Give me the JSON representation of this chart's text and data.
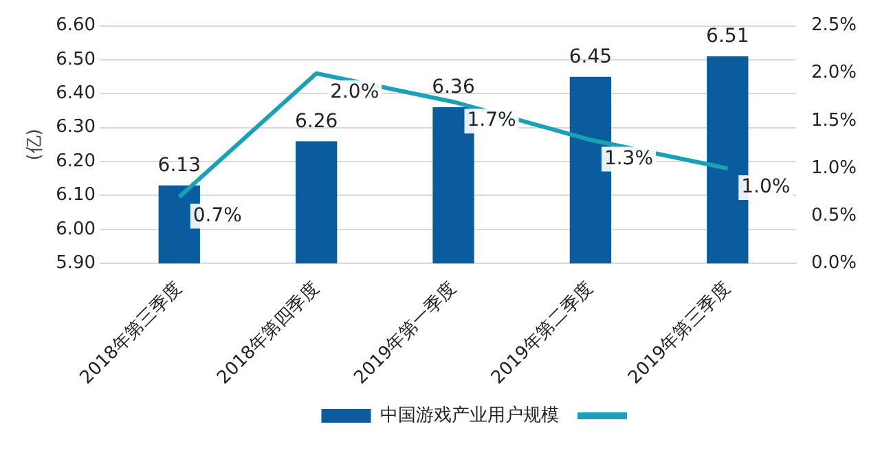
{
  "chart_data": {
    "type": "bar",
    "ylabel": "(亿)",
    "categories": [
      "2018年第三季度",
      "2018年第四季度",
      "2019年第一季度",
      "2019年第二季度",
      "2019年第三季度"
    ],
    "series": [
      {
        "name": "中国游戏产业用户规模",
        "color": "#0a5c9e",
        "values": [
          6.13,
          6.26,
          6.36,
          6.45,
          6.51
        ],
        "value_labels": [
          "6.13",
          "6.26",
          "6.36",
          "6.45",
          "6.51"
        ]
      },
      {
        "type": "line",
        "axis": "y2",
        "color": "#1ba0b5",
        "values": [
          0.7,
          2.0,
          1.7,
          1.3,
          1.0
        ],
        "value_labels": [
          "0.7%",
          "2.0%",
          "1.7%",
          "1.3%",
          "1.0%"
        ]
      }
    ],
    "ylim": [
      5.9,
      6.6
    ],
    "yticks": [
      {
        "value": 5.9,
        "label": "5.90"
      },
      {
        "value": 6.0,
        "label": "6.00"
      },
      {
        "value": 6.1,
        "label": "6.10"
      },
      {
        "value": 6.2,
        "label": "6.20"
      },
      {
        "value": 6.3,
        "label": "6.30"
      },
      {
        "value": 6.4,
        "label": "6.40"
      },
      {
        "value": 6.5,
        "label": "6.50"
      },
      {
        "value": 6.6,
        "label": "6.60"
      }
    ],
    "y2lim": [
      0,
      2.5
    ],
    "y2ticks": [
      {
        "value": 0,
        "label": "0.0%"
      },
      {
        "value": 0.5,
        "label": "0.5%"
      },
      {
        "value": 1.0,
        "label": "1.0%"
      },
      {
        "value": 1.5,
        "label": "1.5%"
      },
      {
        "value": 2.0,
        "label": "2.0%"
      },
      {
        "value": 2.5,
        "label": "2.5%"
      }
    ],
    "grid": "y",
    "legend": "bottom",
    "marker": "none",
    "line_style": "solid"
  }
}
